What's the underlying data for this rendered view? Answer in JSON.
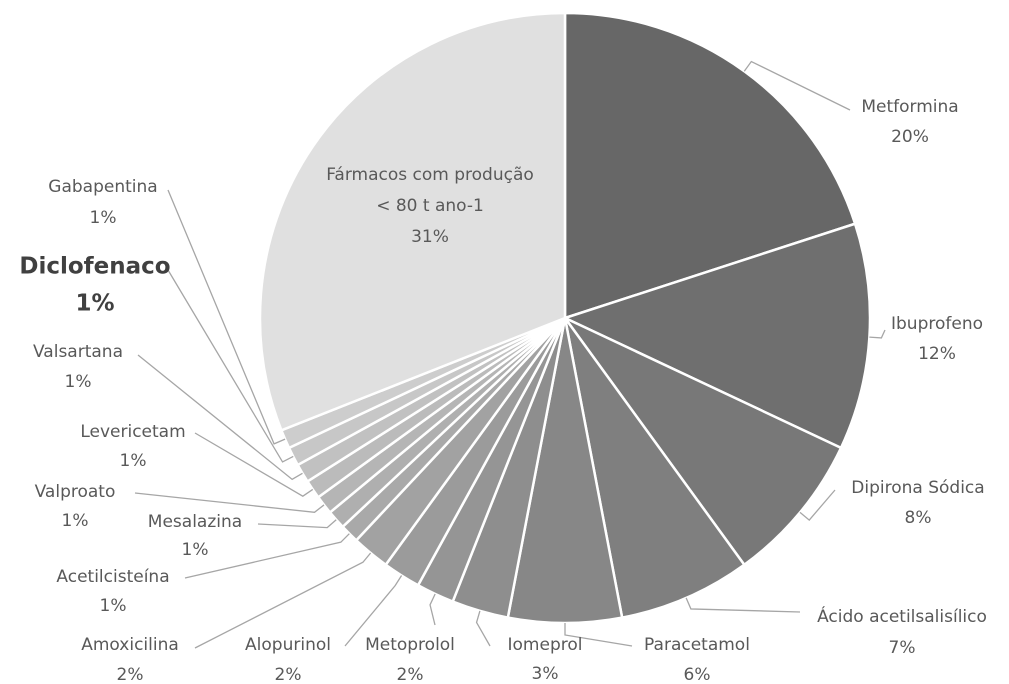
{
  "chart_data": {
    "type": "pie",
    "categories": [
      "Metformina",
      "Ibuprofeno",
      "Dipirona Sódica",
      "Ácido acetilsalisílico",
      "Paracetamol",
      "Iomeprol",
      "Metoprolol",
      "Alopurinol",
      "Amoxicilina",
      "Acetilcisteína",
      "Mesalazina",
      "Valproato",
      "Levericetam",
      "Valsartana",
      "Diclofenaco",
      "Gabapentina",
      "Fármacos com produção\n< 80 t ano-1"
    ],
    "values": [
      20,
      12,
      8,
      7,
      6,
      3,
      2,
      2,
      2,
      1,
      1,
      1,
      1,
      1,
      1,
      1,
      31
    ],
    "value_labels": [
      "20%",
      "12%",
      "8%",
      "7%",
      "6%",
      "3%",
      "2%",
      "2%",
      "2%",
      "1%",
      "1%",
      "1%",
      "1%",
      "1%",
      "1%",
      "1%",
      "31%"
    ],
    "colors": [
      "#676767",
      "#6f6f6f",
      "#787878",
      "#7f7f7f",
      "#878787",
      "#8e8e8e",
      "#959595",
      "#9b9b9b",
      "#a2a2a2",
      "#a9a9a9",
      "#afafaf",
      "#b5b5b5",
      "#bbbbbb",
      "#c1c1c1",
      "#c7c7c7",
      "#cdcdcd",
      "#e0e0e0"
    ],
    "highlight": 14
  }
}
